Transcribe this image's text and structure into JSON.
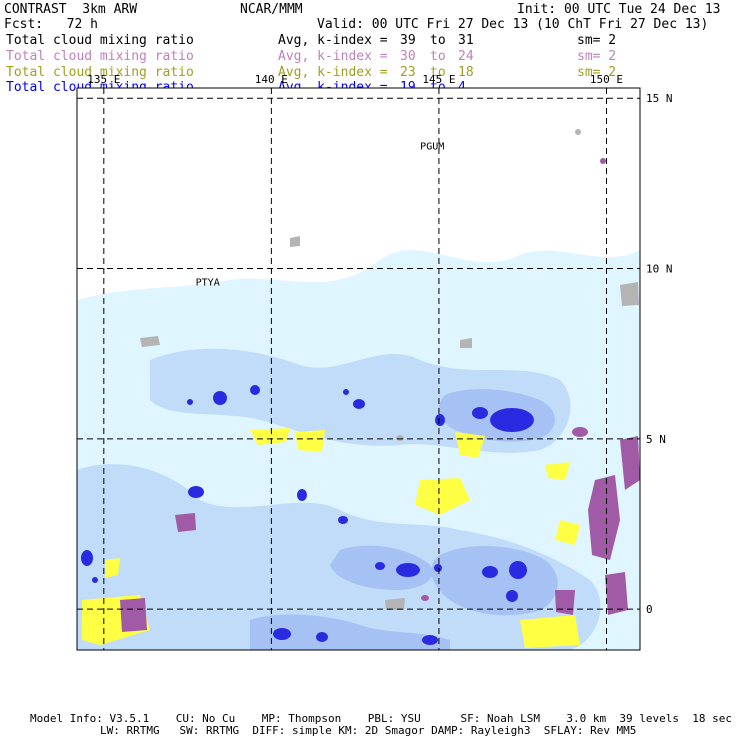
{
  "header": {
    "left_line1": "CONTRAST  3km ARW",
    "center_line1": "NCAR/MMM",
    "right_line1": "Init: 00 UTC Tue 24 Dec 13",
    "left_line2": "Fcst:   72 h",
    "right_line2": "Valid: 00 UTC Fri 27 Dec 13 (10 ChT Fri 27 Dec 13)"
  },
  "legend": [
    {
      "field": "Total cloud mixing ratio",
      "stat": "Avg, k-index =",
      "k1": "39",
      "to": "to",
      "k2": "31",
      "sm": "sm= 2",
      "color": "#000000"
    },
    {
      "field": "Total cloud mixing ratio",
      "stat": "Avg, k-index =",
      "k1": "30",
      "to": "to",
      "k2": "24",
      "sm": "sm= 2",
      "color": "#c080c0"
    },
    {
      "field": "Total cloud mixing ratio",
      "stat": "Avg, k-index =",
      "k1": "23",
      "to": "to",
      "k2": "18",
      "sm": "sm= 2",
      "color": "#a0a020"
    },
    {
      "field": "Total cloud mixing ratio",
      "stat": "Avg, k-index =",
      "k1": "19",
      "to": "to",
      "k2": "4",
      "sm": "",
      "color": "#0000ff"
    }
  ],
  "map": {
    "lon_range": [
      134.2,
      151.0
    ],
    "lat_range": [
      -1.2,
      15.3
    ],
    "lon_labels": [
      {
        "lon": 135,
        "text": "135 E"
      },
      {
        "lon": 140,
        "text": "140 E"
      },
      {
        "lon": 145,
        "text": "145 E"
      },
      {
        "lon": 150,
        "text": "150 E"
      }
    ],
    "lat_labels": [
      {
        "lat": 15,
        "text": "15 N"
      },
      {
        "lat": 10,
        "text": "10 N"
      },
      {
        "lat": 5,
        "text": "5 N"
      },
      {
        "lat": 0,
        "text": "0"
      }
    ],
    "stations": [
      {
        "name": "PGUM",
        "lon": 144.8,
        "lat": 13.5
      },
      {
        "name": "PTYA",
        "lon": 138.1,
        "lat": 9.5
      }
    ],
    "colors": {
      "light_cloud": "#dff5ff",
      "mid_cloud": "#c0dcf8",
      "mid2_cloud": "#a6c2f4",
      "deep_blue": "#2a2ae0",
      "purple": "#a05aa6",
      "yellow": "#ffff44",
      "gray": "#b4b4b4"
    }
  },
  "footer": {
    "line1": "Model Info: V3.5.1    CU: No Cu    MP: Thompson    PBL: YSU      SF: Noah LSM    3.0 km  39 levels  18 sec",
    "line2": "LW: RRTMG   SW: RRTMG  DIFF: simple KM: 2D Smagor DAMP: Rayleigh3  SFLAY: Rev MM5"
  }
}
